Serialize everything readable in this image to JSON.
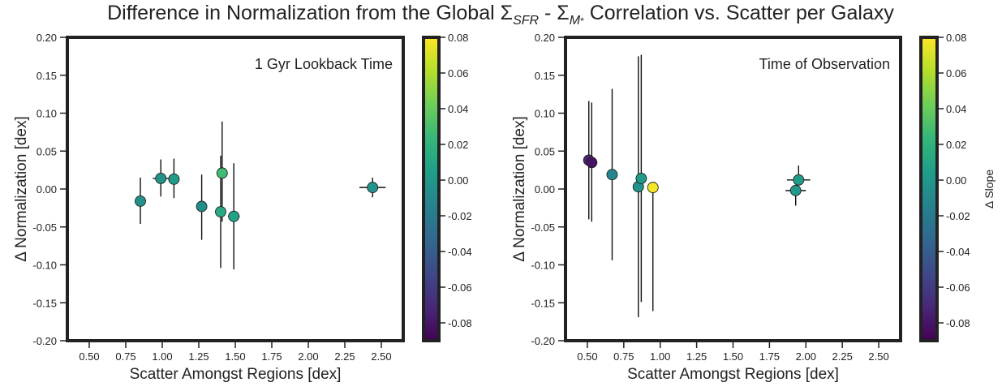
{
  "title": {
    "prefix": "Difference in Normalization from the Global ",
    "sym1": "Σ",
    "sub1": "SFR",
    "mid": " - ",
    "sym2": "Σ",
    "sub2": "M",
    "sub2_star": "*",
    "suffix": " Correlation vs. Scatter per Galaxy"
  },
  "colormap": {
    "name": "viridis",
    "stops": [
      "#440154",
      "#482878",
      "#3e4989",
      "#31688e",
      "#26828e",
      "#1f9e89",
      "#35b779",
      "#6ece58",
      "#b5de2b",
      "#fde725"
    ]
  },
  "chart_data": [
    {
      "type": "scatter",
      "annotation": "1 Gyr Lookback Time",
      "xlabel": "Scatter Amongst Regions [dex]",
      "ylabel": "Δ Normalization [dex]",
      "colorbar_label": "",
      "xlim": [
        0.35,
        2.65
      ],
      "ylim": [
        -0.2,
        0.2
      ],
      "xticks": [
        "0.50",
        "0.75",
        "1.00",
        "1.25",
        "1.50",
        "1.75",
        "2.00",
        "2.25",
        "2.50"
      ],
      "xtick_values": [
        0.5,
        0.75,
        1.0,
        1.25,
        1.5,
        1.75,
        2.0,
        2.25,
        2.5
      ],
      "yticks": [
        "-0.20",
        "-0.15",
        "-0.10",
        "-0.05",
        "0.00",
        "0.05",
        "0.10",
        "0.15",
        "0.20"
      ],
      "ytick_values": [
        -0.2,
        -0.15,
        -0.1,
        -0.05,
        0.0,
        0.05,
        0.1,
        0.15,
        0.2
      ],
      "clim": [
        -0.09,
        0.08
      ],
      "cticks": [
        "-0.08",
        "-0.06",
        "-0.04",
        "-0.02",
        "0.00",
        "0.02",
        "0.04",
        "0.06",
        "0.08"
      ],
      "ctick_values": [
        -0.08,
        -0.06,
        -0.04,
        -0.02,
        0.0,
        0.02,
        0.04,
        0.06,
        0.08
      ],
      "points": [
        {
          "x": 0.85,
          "y": -0.016,
          "xerr": 0.0,
          "yerr_low": 0.03,
          "yerr_high": 0.031,
          "c": -0.005
        },
        {
          "x": 0.99,
          "y": 0.014,
          "xerr": 0.055,
          "yerr_low": 0.024,
          "yerr_high": 0.025,
          "c": -0.003
        },
        {
          "x": 1.08,
          "y": 0.013,
          "xerr": 0.0,
          "yerr_low": 0.025,
          "yerr_high": 0.027,
          "c": 0.003
        },
        {
          "x": 1.27,
          "y": -0.023,
          "xerr": 0.0,
          "yerr_low": 0.044,
          "yerr_high": 0.042,
          "c": -0.007
        },
        {
          "x": 1.4,
          "y": -0.03,
          "xerr": 0.0,
          "yerr_low": 0.074,
          "yerr_high": 0.074,
          "c": 0.012
        },
        {
          "x": 1.41,
          "y": 0.021,
          "xerr": 0.0,
          "yerr_low": 0.064,
          "yerr_high": 0.068,
          "c": 0.027
        },
        {
          "x": 1.49,
          "y": -0.036,
          "xerr": 0.04,
          "yerr_low": 0.07,
          "yerr_high": 0.07,
          "c": 0.008
        },
        {
          "x": 2.44,
          "y": 0.002,
          "xerr": 0.09,
          "yerr_low": 0.013,
          "yerr_high": 0.013,
          "c": -0.002
        }
      ]
    },
    {
      "type": "scatter",
      "annotation": "Time of Observation",
      "xlabel": "Scatter Amongst Regions [dex]",
      "ylabel": "Δ Normalization [dex]",
      "colorbar_label": "Δ Slope",
      "xlim": [
        0.35,
        2.65
      ],
      "ylim": [
        -0.2,
        0.2
      ],
      "xticks": [
        "0.50",
        "0.75",
        "1.00",
        "1.25",
        "1.50",
        "1.75",
        "2.00",
        "2.25",
        "2.50"
      ],
      "xtick_values": [
        0.5,
        0.75,
        1.0,
        1.25,
        1.5,
        1.75,
        2.0,
        2.25,
        2.5
      ],
      "yticks": [
        "-0.20",
        "-0.15",
        "-0.10",
        "-0.05",
        "0.00",
        "0.05",
        "0.10",
        "0.15",
        "0.20"
      ],
      "ytick_values": [
        -0.2,
        -0.15,
        -0.1,
        -0.05,
        0.0,
        0.05,
        0.1,
        0.15,
        0.2
      ],
      "clim": [
        -0.09,
        0.08
      ],
      "cticks": [
        "-0.08",
        "-0.06",
        "-0.04",
        "-0.02",
        "0.00",
        "0.02",
        "0.04",
        "0.06",
        "0.08"
      ],
      "ctick_values": [
        -0.08,
        -0.06,
        -0.04,
        -0.02,
        0.0,
        0.02,
        0.04,
        0.06,
        0.08
      ],
      "points": [
        {
          "x": 0.51,
          "y": 0.038,
          "xerr": 0.0,
          "yerr_low": 0.078,
          "yerr_high": 0.078,
          "c": -0.072
        },
        {
          "x": 0.53,
          "y": 0.035,
          "xerr": 0.0,
          "yerr_low": 0.078,
          "yerr_high": 0.079,
          "c": -0.082
        },
        {
          "x": 0.67,
          "y": 0.019,
          "xerr": 0.0,
          "yerr_low": 0.113,
          "yerr_high": 0.113,
          "c": -0.012
        },
        {
          "x": 0.85,
          "y": 0.003,
          "xerr": 0.0,
          "yerr_low": 0.172,
          "yerr_high": 0.172,
          "c": -0.002
        },
        {
          "x": 0.87,
          "y": 0.014,
          "xerr": 0.0,
          "yerr_low": 0.163,
          "yerr_high": 0.163,
          "c": 0.002
        },
        {
          "x": 0.95,
          "y": 0.002,
          "xerr": 0.03,
          "yerr_low": 0.163,
          "yerr_high": 0.0,
          "c": 0.078
        },
        {
          "x": 1.93,
          "y": -0.002,
          "xerr": 0.07,
          "yerr_low": 0.02,
          "yerr_high": 0.0,
          "c": 0.001
        },
        {
          "x": 1.95,
          "y": 0.012,
          "xerr": 0.08,
          "yerr_low": 0.0,
          "yerr_high": 0.019,
          "c": 0.003
        }
      ]
    }
  ]
}
